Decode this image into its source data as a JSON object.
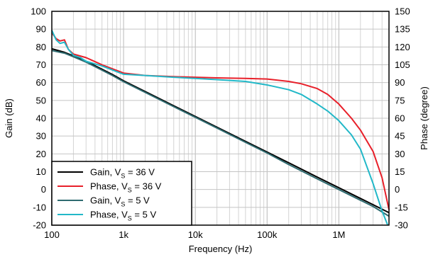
{
  "chart_data": {
    "type": "line",
    "xlabel": "Frequency (Hz)",
    "ylabel_left": "Gain (dB)",
    "ylabel_right": "Phase (degree)",
    "x_scale": "log",
    "xlim": [
      100,
      5000000
    ],
    "ylim_left": [
      -20,
      100
    ],
    "ylim_right": [
      -30,
      150
    ],
    "grid": true,
    "legend_position": "bottom-left",
    "x_ticks": [
      {
        "value": 100,
        "label": "100"
      },
      {
        "value": 1000,
        "label": "1k"
      },
      {
        "value": 10000,
        "label": "10k"
      },
      {
        "value": 100000,
        "label": "100k"
      },
      {
        "value": 1000000,
        "label": "1M"
      }
    ],
    "y_ticks_left": [
      {
        "value": 100,
        "label": "100"
      },
      {
        "value": 90,
        "label": "90"
      },
      {
        "value": 80,
        "label": "80"
      },
      {
        "value": 70,
        "label": "70"
      },
      {
        "value": 60,
        "label": "60"
      },
      {
        "value": 50,
        "label": "50"
      },
      {
        "value": 40,
        "label": "40"
      },
      {
        "value": 30,
        "label": "30"
      },
      {
        "value": 20,
        "label": "20"
      },
      {
        "value": 10,
        "label": "10"
      },
      {
        "value": 0,
        "label": "0"
      },
      {
        "value": -10,
        "label": "-10"
      },
      {
        "value": -20,
        "label": "-20"
      }
    ],
    "y_ticks_right": [
      {
        "value": 150,
        "label": "150"
      },
      {
        "value": 135,
        "label": "135"
      },
      {
        "value": 120,
        "label": "120"
      },
      {
        "value": 105,
        "label": "105"
      },
      {
        "value": 90,
        "label": "90"
      },
      {
        "value": 75,
        "label": "75"
      },
      {
        "value": 60,
        "label": "60"
      },
      {
        "value": 45,
        "label": "45"
      },
      {
        "value": 30,
        "label": "30"
      },
      {
        "value": 15,
        "label": "15"
      },
      {
        "value": 0,
        "label": "0"
      },
      {
        "value": -15,
        "label": "-15"
      },
      {
        "value": -30,
        "label": "-30"
      }
    ],
    "series": [
      {
        "name_main": "Gain, V",
        "name_sub": "S",
        "name_tail": " = 36 V",
        "axis": "left",
        "color": "#000000",
        "points": [
          [
            100,
            79
          ],
          [
            150,
            77
          ],
          [
            200,
            75
          ],
          [
            300,
            72
          ],
          [
            500,
            67.5
          ],
          [
            700,
            64.5
          ],
          [
            1000,
            61
          ],
          [
            2000,
            55
          ],
          [
            5000,
            47
          ],
          [
            10000,
            41
          ],
          [
            20000,
            35
          ],
          [
            50000,
            27
          ],
          [
            100000,
            21
          ],
          [
            200000,
            15
          ],
          [
            500000,
            7
          ],
          [
            1000000,
            1
          ],
          [
            2000000,
            -5
          ],
          [
            3000000,
            -8.5
          ],
          [
            5000000,
            -13
          ]
        ]
      },
      {
        "name_main": "Phase, V",
        "name_sub": "S",
        "name_tail": " = 36 V",
        "axis": "right",
        "color": "#e8202a",
        "points": [
          [
            100,
            132
          ],
          [
            115,
            127
          ],
          [
            130,
            125
          ],
          [
            150,
            126
          ],
          [
            170,
            118
          ],
          [
            200,
            114
          ],
          [
            300,
            111
          ],
          [
            500,
            105
          ],
          [
            1000,
            98
          ],
          [
            2000,
            96
          ],
          [
            5000,
            95
          ],
          [
            10000,
            94.5
          ],
          [
            20000,
            94
          ],
          [
            50000,
            93.5
          ],
          [
            100000,
            93
          ],
          [
            200000,
            91
          ],
          [
            300000,
            89
          ],
          [
            500000,
            85
          ],
          [
            700000,
            80
          ],
          [
            1000000,
            72
          ],
          [
            1500000,
            60
          ],
          [
            2000000,
            50
          ],
          [
            3000000,
            32
          ],
          [
            4000000,
            10
          ],
          [
            5000000,
            -17
          ]
        ]
      },
      {
        "name_main": "Gain, V",
        "name_sub": "S",
        "name_tail": " = 5 V",
        "axis": "left",
        "color": "#2f6b70",
        "points": [
          [
            100,
            78
          ],
          [
            150,
            76.5
          ],
          [
            200,
            74.5
          ],
          [
            300,
            71.5
          ],
          [
            500,
            67
          ],
          [
            700,
            64
          ],
          [
            1000,
            60.5
          ],
          [
            2000,
            54.5
          ],
          [
            5000,
            46.5
          ],
          [
            10000,
            40.5
          ],
          [
            20000,
            34.5
          ],
          [
            50000,
            26.5
          ],
          [
            100000,
            20.5
          ],
          [
            200000,
            14
          ],
          [
            500000,
            6
          ],
          [
            1000000,
            0
          ],
          [
            2000000,
            -6
          ],
          [
            3000000,
            -9.5
          ],
          [
            5000000,
            -15
          ]
        ]
      },
      {
        "name_main": "Phase, V",
        "name_sub": "S",
        "name_tail": " = 5 V",
        "axis": "right",
        "color": "#22b8c8",
        "points": [
          [
            100,
            134
          ],
          [
            115,
            126
          ],
          [
            130,
            123
          ],
          [
            150,
            124
          ],
          [
            170,
            118
          ],
          [
            200,
            113
          ],
          [
            250,
            111
          ],
          [
            300,
            108
          ],
          [
            500,
            104
          ],
          [
            1000,
            97
          ],
          [
            2000,
            96
          ],
          [
            5000,
            94.5
          ],
          [
            10000,
            93.5
          ],
          [
            20000,
            92.5
          ],
          [
            50000,
            91
          ],
          [
            100000,
            88
          ],
          [
            200000,
            84
          ],
          [
            300000,
            80
          ],
          [
            500000,
            72
          ],
          [
            700000,
            66
          ],
          [
            1000000,
            58
          ],
          [
            1500000,
            46
          ],
          [
            2000000,
            34
          ],
          [
            3000000,
            5
          ],
          [
            4000000,
            -18
          ],
          [
            4800000,
            -32
          ]
        ]
      }
    ]
  }
}
